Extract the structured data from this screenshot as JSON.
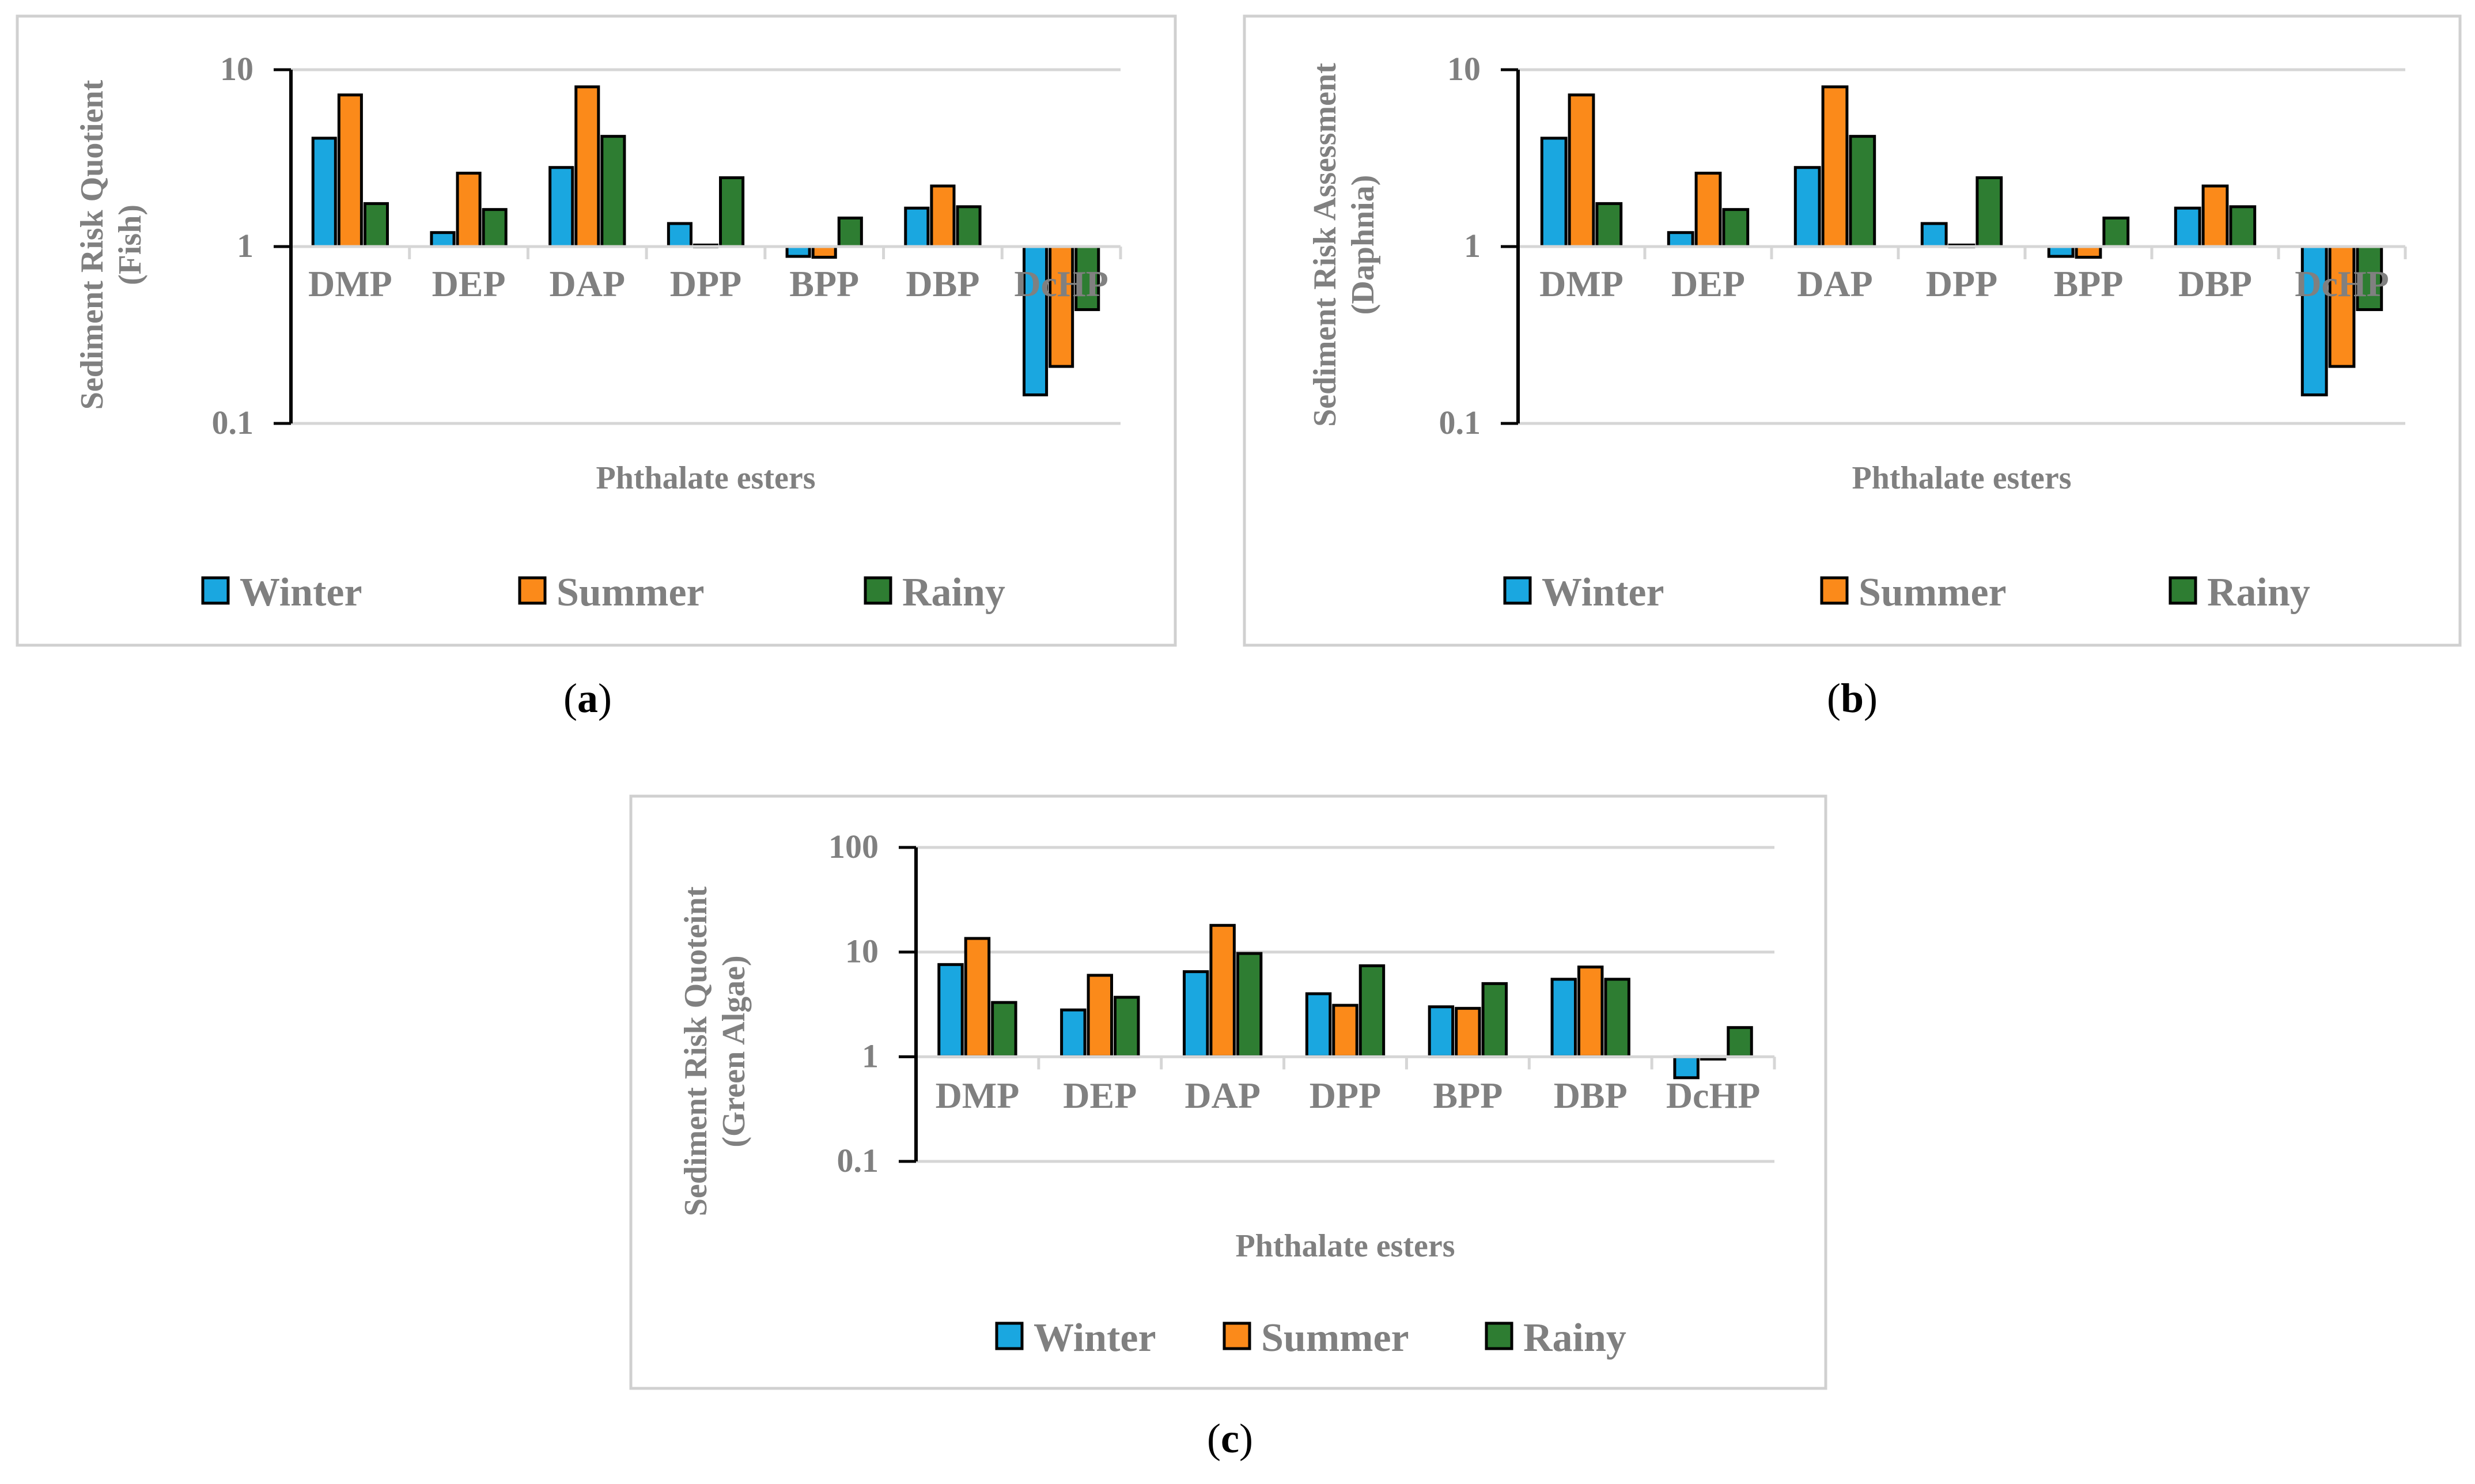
{
  "figure": {
    "panel_labels": [
      "(a)",
      "(b)",
      "(c)"
    ]
  },
  "colors": {
    "Winter": "#1aa7e0",
    "Summer": "#fb8a1a",
    "Rainy": "#2e7d32",
    "frame": "#d0d0d0",
    "grid": "#d6d6d6",
    "text": "#808080",
    "bar_stroke": "#000000"
  },
  "chart_data": [
    {
      "type": "bar",
      "panel": "(a)",
      "ylabel_line1": "Sediment Risk Quotient",
      "ylabel_line2": "(Fish)",
      "xlabel": "Phthalate esters",
      "yscale": "log",
      "ylim": [
        0.1,
        10
      ],
      "yticks": [
        "10",
        "1",
        "0.1"
      ],
      "ytick_values": [
        10,
        1,
        0.1
      ],
      "categories": [
        "DMP",
        "DEP",
        "DAP",
        "DPP",
        "BPP",
        "DBP",
        "DcHP"
      ],
      "legend": [
        "Winter",
        "Summer",
        "Rainy"
      ],
      "series": [
        {
          "name": "Winter",
          "values": [
            4.1,
            1.2,
            2.8,
            1.35,
            0.88,
            1.65,
            0.145
          ]
        },
        {
          "name": "Summer",
          "values": [
            7.2,
            2.6,
            8.0,
            1.02,
            0.87,
            2.2,
            0.21
          ]
        },
        {
          "name": "Rainy",
          "values": [
            1.75,
            1.62,
            4.2,
            2.45,
            1.45,
            1.68,
            0.44
          ]
        }
      ]
    },
    {
      "type": "bar",
      "panel": "(b)",
      "ylabel_line1": "Sediment Risk Assessment",
      "ylabel_line2": "(Daphnia)",
      "xlabel": "Phthalate esters",
      "yscale": "log",
      "ylim": [
        0.1,
        10
      ],
      "yticks": [
        "10",
        "1",
        "0.1"
      ],
      "ytick_values": [
        10,
        1,
        0.1
      ],
      "categories": [
        "DMP",
        "DEP",
        "DAP",
        "DPP",
        "BPP",
        "DBP",
        "DcHP"
      ],
      "legend": [
        "Winter",
        "Summer",
        "Rainy"
      ],
      "series": [
        {
          "name": "Winter",
          "values": [
            4.1,
            1.2,
            2.8,
            1.35,
            0.88,
            1.65,
            0.145
          ]
        },
        {
          "name": "Summer",
          "values": [
            7.2,
            2.6,
            8.0,
            1.02,
            0.87,
            2.2,
            0.21
          ]
        },
        {
          "name": "Rainy",
          "values": [
            1.75,
            1.62,
            4.2,
            2.45,
            1.45,
            1.68,
            0.44
          ]
        }
      ]
    },
    {
      "type": "bar",
      "panel": "(c)",
      "ylabel_line1": "Sediment Risk Quoteint",
      "ylabel_line2": "(Green Algae)",
      "xlabel": "Phthalate esters",
      "yscale": "log",
      "ylim": [
        0.1,
        100
      ],
      "yticks": [
        "100",
        "10",
        "1",
        "0.1"
      ],
      "ytick_values": [
        100,
        10,
        1,
        0.1
      ],
      "categories": [
        "DMP",
        "DEP",
        "DAP",
        "DPP",
        "BPP",
        "DBP",
        "DcHP"
      ],
      "legend": [
        "Winter",
        "Summer",
        "Rainy"
      ],
      "series": [
        {
          "name": "Winter",
          "values": [
            7.6,
            2.8,
            6.5,
            4.0,
            3.0,
            5.5,
            0.63
          ]
        },
        {
          "name": "Summer",
          "values": [
            13.5,
            6.0,
            18.0,
            3.1,
            2.9,
            7.2,
            0.95
          ]
        },
        {
          "name": "Rainy",
          "values": [
            3.3,
            3.7,
            9.7,
            7.4,
            5.0,
            5.5,
            1.9
          ]
        }
      ]
    }
  ]
}
